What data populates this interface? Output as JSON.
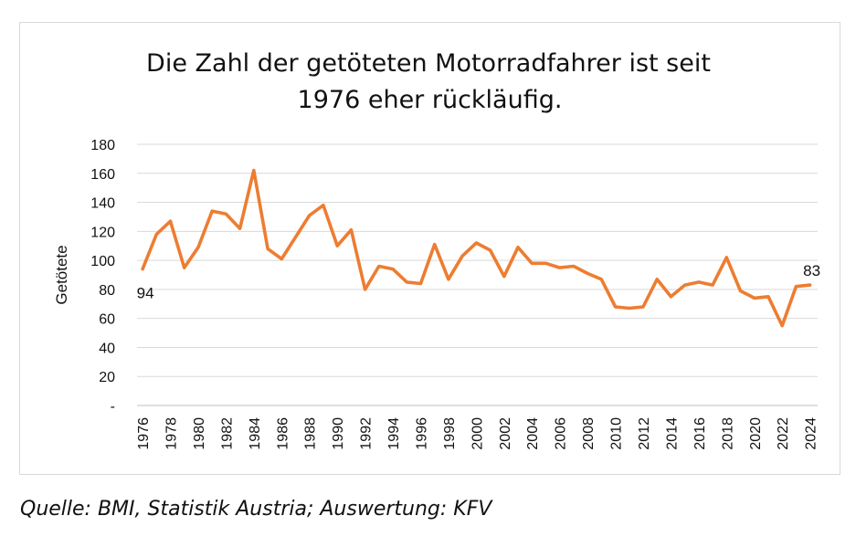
{
  "chart_data": {
    "type": "line",
    "title": "Die Zahl der getöteten Motorradfahrer ist seit 1976 eher rückläufig.",
    "title_lines": [
      "Die Zahl der getöteten Motorradfahrer ist seit",
      "1976 eher rückläufig."
    ],
    "xlabel": "",
    "ylabel": "Getötete",
    "ylim": [
      0,
      180
    ],
    "y_ticks": [
      0,
      20,
      40,
      60,
      80,
      100,
      120,
      140,
      160,
      180
    ],
    "y_tick_labels": [
      "-",
      "20",
      "40",
      "60",
      "80",
      "100",
      "120",
      "140",
      "160",
      "180"
    ],
    "x_tick_labels": [
      "1976",
      "1978",
      "1980",
      "1982",
      "1984",
      "1986",
      "1988",
      "1990",
      "1992",
      "1994",
      "1996",
      "1998",
      "2000",
      "2002",
      "2004",
      "2006",
      "2008",
      "2010",
      "2012",
      "2014",
      "2016",
      "2018",
      "2020",
      "2022",
      "2024"
    ],
    "grid": true,
    "legend": false,
    "color": "#ED7D31",
    "series": [
      {
        "x": [
          1976,
          1977,
          1978,
          1979,
          1980,
          1981,
          1982,
          1983,
          1984,
          1985,
          1986,
          1987,
          1988,
          1989,
          1990,
          1991,
          1992,
          1993,
          1994,
          1995,
          1996,
          1997,
          1998,
          1999,
          2000,
          2001,
          2002,
          2003,
          2004,
          2005,
          2006,
          2007,
          2008,
          2009,
          2010,
          2011,
          2012,
          2013,
          2014,
          2015,
          2016,
          2017,
          2018,
          2019,
          2020,
          2021,
          2022,
          2023,
          2024
        ],
        "values": [
          94,
          118,
          127,
          95,
          109,
          134,
          132,
          122,
          162,
          108,
          101,
          116,
          131,
          138,
          110,
          121,
          80,
          96,
          94,
          85,
          84,
          111,
          87,
          103,
          112,
          107,
          89,
          109,
          98,
          98,
          95,
          96,
          91,
          87,
          68,
          67,
          68,
          87,
          75,
          83,
          85,
          83,
          102,
          79,
          74,
          75,
          55,
          82,
          83
        ]
      }
    ],
    "annotations": [
      {
        "x": 1976,
        "y": 94,
        "text": "94"
      },
      {
        "x": 2024,
        "y": 83,
        "text": "83"
      }
    ]
  },
  "source": "Quelle: BMI, Statistik Austria; Auswertung: KFV"
}
